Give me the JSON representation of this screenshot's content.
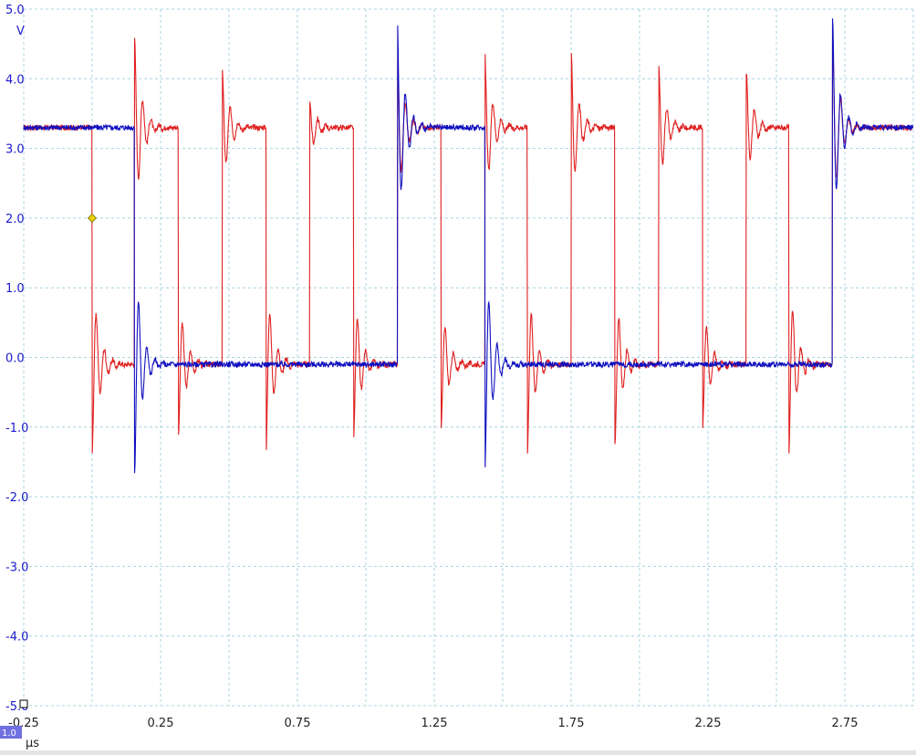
{
  "chart_data": {
    "type": "line",
    "title": "",
    "xlabel": "",
    "ylabel": "",
    "x_unit": "µs",
    "y_unit": "V",
    "xlim": [
      -0.25,
      3.0
    ],
    "ylim": [
      -5.0,
      5.0
    ],
    "grid": true,
    "x_tick_labels": [
      "-0.25",
      "0.25",
      "0.75",
      "1.25",
      "1.75",
      "2.25",
      "2.75"
    ],
    "x_tick_values": [
      -0.25,
      0.25,
      0.75,
      1.25,
      1.75,
      2.25,
      2.75
    ],
    "y_tick_labels": [
      "5.0",
      "4.0",
      "3.0",
      "2.0",
      "1.0",
      "0.0",
      "-1.0",
      "-2.0",
      "-3.0",
      "-4.0",
      "-5.0"
    ],
    "y_tick_values": [
      5,
      4,
      3,
      2,
      1,
      0,
      -1,
      -2,
      -3,
      -4,
      -5
    ],
    "x_gridlines": [
      -0.25,
      0.0,
      0.25,
      0.5,
      0.75,
      1.0,
      1.25,
      1.5,
      1.75,
      2.0,
      2.25,
      2.5,
      2.75,
      3.0
    ],
    "y_gridlines": [
      5,
      4,
      3,
      2,
      1,
      0,
      -1,
      -2,
      -3,
      -4,
      -5
    ],
    "trigger_marker": {
      "x": 0.0,
      "y": 2.0,
      "color": "#e6d200"
    },
    "scale_badge": "1.0",
    "series": [
      {
        "color": "#e02020",
        "high": 3.3,
        "low": -0.1,
        "initial": 3.3,
        "edges": [
          {
            "t": 0.0,
            "to": -0.1
          },
          {
            "t": 0.155,
            "to": 3.3
          },
          {
            "t": 0.315,
            "to": -0.1
          },
          {
            "t": 0.475,
            "to": 3.3
          },
          {
            "t": 0.635,
            "to": -0.1
          },
          {
            "t": 0.795,
            "to": 3.3
          },
          {
            "t": 0.955,
            "to": -0.1
          },
          {
            "t": 1.115,
            "to": 3.3
          },
          {
            "t": 1.275,
            "to": -0.1
          },
          {
            "t": 1.435,
            "to": 3.3
          },
          {
            "t": 1.59,
            "to": -0.1
          },
          {
            "t": 1.75,
            "to": 3.3
          },
          {
            "t": 1.91,
            "to": -0.1
          },
          {
            "t": 2.07,
            "to": 3.3
          },
          {
            "t": 2.23,
            "to": -0.1
          },
          {
            "t": 2.39,
            "to": 3.3
          },
          {
            "t": 2.545,
            "to": -0.1
          },
          {
            "t": 2.705,
            "to": 3.3
          }
        ],
        "overshoot_peaks": [
          4.6,
          4.2,
          3.7,
          4.4,
          4.4,
          4.4,
          4.2,
          4.1
        ],
        "undershoot_dips": [
          -1.4,
          -1.15,
          -1.45,
          -1.25,
          -1.05,
          -1.4,
          -1.25,
          -1.05,
          -1.5
        ]
      },
      {
        "color": "#1010c0",
        "high": 3.3,
        "low": -0.1,
        "initial": 3.3,
        "edges": [
          {
            "t": 0.155,
            "to": -0.1
          },
          {
            "t": 1.115,
            "to": 3.3
          },
          {
            "t": 1.435,
            "to": -0.1
          },
          {
            "t": 2.705,
            "to": 3.3
          }
        ],
        "overshoot_peaks": [
          4.9,
          4.9
        ],
        "undershoot_dips": [
          -1.7,
          -1.7
        ]
      }
    ]
  }
}
